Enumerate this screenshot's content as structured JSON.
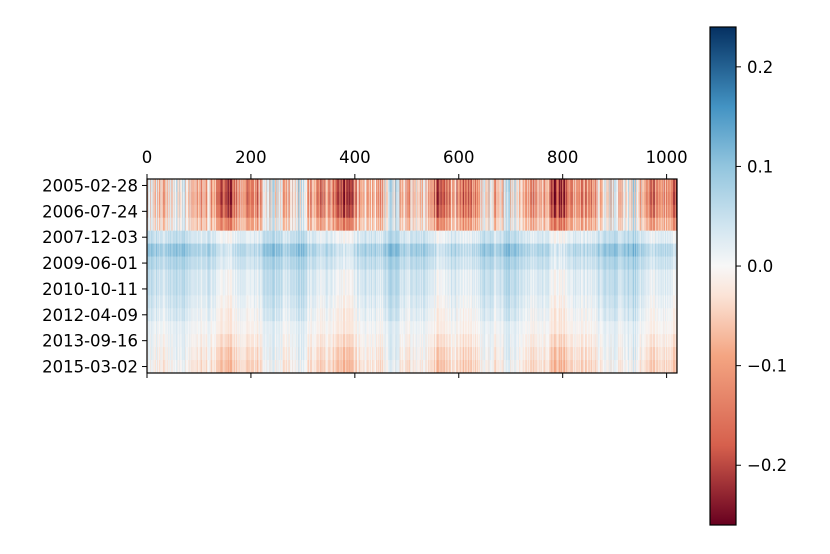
{
  "chart_data": {
    "type": "heatmap",
    "title": "",
    "xlabel": "",
    "ylabel": "",
    "x_ticks": [
      0,
      200,
      400,
      600,
      800,
      1000
    ],
    "x_tick_labels": [
      "0",
      "200",
      "400",
      "600",
      "800",
      "1000"
    ],
    "x_range": [
      0,
      1020
    ],
    "x_tick_position": "top-and-bottom",
    "y_tick_labels": [
      "2005-02-28",
      "2006-07-24",
      "2007-12-03",
      "2009-06-01",
      "2010-10-11",
      "2012-04-09",
      "2013-09-16",
      "2015-03-02"
    ],
    "row_count": 15,
    "row_profile": [
      {
        "row": 0,
        "mean": -0.09,
        "spread": 0.14
      },
      {
        "row": 1,
        "mean": -0.1,
        "spread": 0.14
      },
      {
        "row": 2,
        "mean": -0.09,
        "spread": 0.13
      },
      {
        "row": 3,
        "mean": -0.06,
        "spread": 0.1
      },
      {
        "row": 4,
        "mean": 0.03,
        "spread": 0.04
      },
      {
        "row": 5,
        "mean": 0.07,
        "spread": 0.05
      },
      {
        "row": 6,
        "mean": 0.05,
        "spread": 0.04
      },
      {
        "row": 7,
        "mean": 0.03,
        "spread": 0.04
      },
      {
        "row": 8,
        "mean": 0.03,
        "spread": 0.04
      },
      {
        "row": 9,
        "mean": 0.02,
        "spread": 0.04
      },
      {
        "row": 10,
        "mean": 0.01,
        "spread": 0.04
      },
      {
        "row": 11,
        "mean": 0.0,
        "spread": 0.03
      },
      {
        "row": 12,
        "mean": -0.01,
        "spread": 0.04
      },
      {
        "row": 13,
        "mean": -0.02,
        "spread": 0.05
      },
      {
        "row": 14,
        "mean": -0.03,
        "spread": 0.05
      }
    ],
    "colormap": "RdBu",
    "colorbar": {
      "range": [
        -0.26,
        0.24
      ],
      "ticks": [
        0.2,
        0.1,
        0.0,
        -0.1,
        -0.2
      ],
      "tick_labels": [
        "0.2",
        "0.1",
        "0.0",
        "−0.1",
        "−0.2"
      ],
      "stops": [
        {
          "value": -0.26,
          "color": "#67001f"
        },
        {
          "value": -0.18,
          "color": "#d6604d"
        },
        {
          "value": -0.09,
          "color": "#f4a582"
        },
        {
          "value": -0.03,
          "color": "#fbe3d6"
        },
        {
          "value": 0.0,
          "color": "#f7f7f7"
        },
        {
          "value": 0.04,
          "color": "#d1e5f0"
        },
        {
          "value": 0.1,
          "color": "#92c5de"
        },
        {
          "value": 0.16,
          "color": "#4393c3"
        },
        {
          "value": 0.24,
          "color": "#053061"
        }
      ]
    },
    "grid": false,
    "legend": "none"
  }
}
